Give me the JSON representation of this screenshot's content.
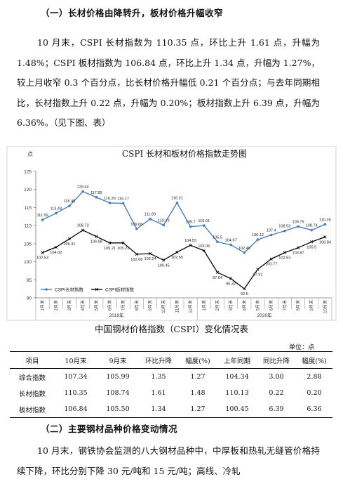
{
  "section1": {
    "heading": "（一）长材价格由降转升，板材价格升幅收窄",
    "paragraph": "10 月末，CSPI 长材指数为 110.35 点，环比上升 1.61 点，升幅为 1.48%；CSPI 板材指数为 106.84 点，环比上升 1.34 点，升幅为 1.27%，较上月收窄 0.3 个百分点，比长材价格升幅低 0.21 个百分点；与去年同期相比，长材指数上升 0.22 点，升幅为 0.20%；板材指数上升 6.39 点，升幅为 6.36%。（见下图、表）"
  },
  "chart_data": {
    "type": "line",
    "title": "CSPI 长材和板材价格指数走势图",
    "ylabel": "点",
    "ylim": [
      90,
      125
    ],
    "yticks": [
      90,
      95,
      100,
      105,
      110,
      115,
      120,
      125
    ],
    "categories": [
      "1月末",
      "2月末",
      "3月末",
      "4月末",
      "5月末",
      "6月末",
      "7月末",
      "8月末",
      "9月末",
      "10月末",
      "11月末",
      "12月末",
      "1月末",
      "2月末",
      "3月末",
      "4月末",
      "5月末",
      "6月末",
      "7月末",
      "8月末",
      "9月末",
      "10月末"
    ],
    "year_groups": [
      {
        "label": "2019年",
        "start": 0,
        "end": 11
      },
      {
        "label": "2020年",
        "start": 12,
        "end": 21
      }
    ],
    "series": [
      {
        "name": "CSPI长材指数",
        "color": "#4a7ebb",
        "marker": "circle",
        "values": [
          111.59,
          113.43,
          115.45,
          119.44,
          117.85,
          116.26,
          116.17,
          109.06,
          111.83,
          110.13,
          116.31,
          109.7,
          110.01,
          105.5,
          104.67,
          102.49,
          106.12,
          107.4,
          108.53,
          109.75,
          108.74,
          110.35
        ],
        "labels": [
          "111.59",
          "113.43",
          "115.45",
          "119.44",
          "117.85",
          "116.26",
          "116.17",
          "109.06",
          "111.83",
          "110.13",
          "116.31",
          "109.7",
          "110.01",
          "105.5",
          "104.67",
          "102.49",
          "106.12",
          "107.4",
          "108.53",
          "109.75",
          "108.74",
          "110.35"
        ]
      },
      {
        "name": "CSPI板材指数",
        "color": "#000000",
        "marker": "x",
        "values": [
          102.53,
          104.02,
          106.31,
          108.72,
          106.98,
          105.21,
          105.21,
          102.08,
          102.24,
          100.45,
          102.65,
          104.55,
          103.06,
          97.04,
          95.32,
          92.5,
          97.91,
          100.77,
          102.53,
          103.87,
          105.5,
          106.84
        ],
        "labels": [
          "102.53",
          "104.02",
          "106.31",
          "108.72",
          "106.98",
          "105.21",
          "105.21",
          "102.08",
          "102.24",
          "100.45",
          "102.65",
          "104.55",
          "103.06",
          "97.04",
          "95.32",
          "92.5",
          "97.91",
          "100.77",
          "102.53",
          "103.87",
          "105.5",
          "106.84"
        ]
      }
    ],
    "legend": "bottom-left",
    "grid": false
  },
  "table": {
    "title": "中国钢材价格指数（CSPI）变化情况表",
    "unit": "单位：点",
    "headers": [
      "项目",
      "10月末",
      "9月末",
      "环比升降",
      "幅度(%)",
      "上年同期",
      "同比升降",
      "幅度(%)"
    ],
    "rows": [
      [
        "综合指数",
        "107.34",
        "105.99",
        "1.35",
        "1.27",
        "104.34",
        "3.00",
        "2.88"
      ],
      [
        "长材指数",
        "110.35",
        "108.74",
        "1.61",
        "1.48",
        "110.13",
        "0.22",
        "0.20"
      ],
      [
        "板材指数",
        "106.84",
        "105.50",
        "1.34",
        "1.27",
        "100.45",
        "6.39",
        "6.36"
      ]
    ]
  },
  "section2": {
    "heading": "（二）主要钢材品种价格变动情况",
    "paragraph": "10 月末，钢铁协会监测的八大钢材品种中，中厚板和热轧无缝管价格持续下降，环比分别下降 30 元/吨和 15 元/吨；高线、冷轧"
  }
}
